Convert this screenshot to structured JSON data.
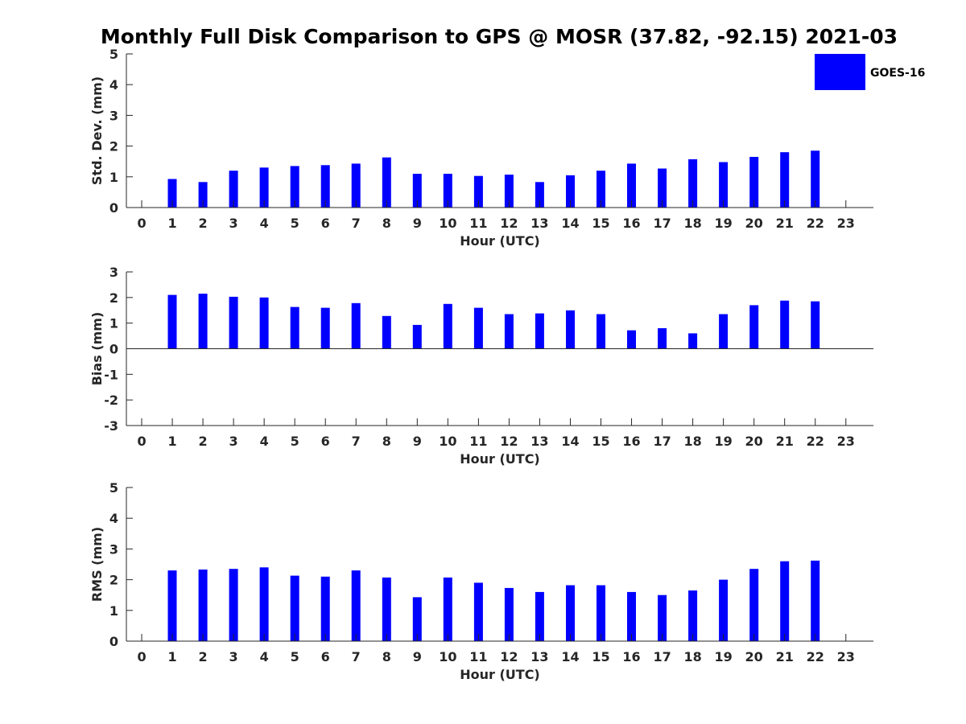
{
  "title": "Monthly Full Disk Comparison to GPS @ MOSR (37.82, -92.15) 2021-03",
  "legend": {
    "label": "GOES-16",
    "color": "#0000ff"
  },
  "chart_data": [
    {
      "type": "bar",
      "ylabel": "Std. Dev. (mm)",
      "xlabel": "Hour (UTC)",
      "ylim": [
        0,
        5
      ],
      "yticks": [
        0,
        1,
        2,
        3,
        4,
        5
      ],
      "xlim": [
        -0.5,
        23.9
      ],
      "xticks": [
        0,
        1,
        2,
        3,
        4,
        5,
        6,
        7,
        8,
        9,
        10,
        11,
        12,
        13,
        14,
        15,
        16,
        17,
        18,
        19,
        20,
        21,
        22,
        23
      ],
      "series": [
        {
          "name": "GOES-16",
          "color": "#0000ff",
          "x": [
            1,
            2,
            3,
            4,
            5,
            6,
            7,
            8,
            9,
            10,
            11,
            12,
            13,
            14,
            15,
            16,
            17,
            18,
            19,
            20,
            21,
            22
          ],
          "values": [
            0.93,
            0.83,
            1.2,
            1.3,
            1.35,
            1.38,
            1.43,
            1.63,
            1.1,
            1.1,
            1.03,
            1.07,
            0.83,
            1.05,
            1.2,
            1.43,
            1.27,
            1.57,
            1.48,
            1.65,
            1.8,
            1.85
          ]
        }
      ]
    },
    {
      "type": "bar",
      "ylabel": "Bias (mm)",
      "xlabel": "Hour (UTC)",
      "ylim": [
        -3,
        3
      ],
      "yticks": [
        -3,
        -2,
        -1,
        0,
        1,
        2,
        3
      ],
      "xlim": [
        -0.5,
        23.9
      ],
      "xticks": [
        0,
        1,
        2,
        3,
        4,
        5,
        6,
        7,
        8,
        9,
        10,
        11,
        12,
        13,
        14,
        15,
        16,
        17,
        18,
        19,
        20,
        21,
        22,
        23
      ],
      "series": [
        {
          "name": "GOES-16",
          "color": "#0000ff",
          "x": [
            1,
            2,
            3,
            4,
            5,
            6,
            7,
            8,
            9,
            10,
            11,
            12,
            13,
            14,
            15,
            16,
            17,
            18,
            19,
            20,
            21,
            22
          ],
          "values": [
            2.1,
            2.15,
            2.03,
            2.0,
            1.63,
            1.6,
            1.78,
            1.28,
            0.93,
            1.75,
            1.6,
            1.35,
            1.38,
            1.5,
            1.35,
            0.72,
            0.8,
            0.6,
            1.35,
            1.7,
            1.88,
            1.85
          ]
        }
      ]
    },
    {
      "type": "bar",
      "ylabel": "RMS (mm)",
      "xlabel": "Hour (UTC)",
      "ylim": [
        0,
        5
      ],
      "yticks": [
        0,
        1,
        2,
        3,
        4,
        5
      ],
      "xlim": [
        -0.5,
        23.9
      ],
      "xticks": [
        0,
        1,
        2,
        3,
        4,
        5,
        6,
        7,
        8,
        9,
        10,
        11,
        12,
        13,
        14,
        15,
        16,
        17,
        18,
        19,
        20,
        21,
        22,
        23
      ],
      "series": [
        {
          "name": "GOES-16",
          "color": "#0000ff",
          "x": [
            1,
            2,
            3,
            4,
            5,
            6,
            7,
            8,
            9,
            10,
            11,
            12,
            13,
            14,
            15,
            16,
            17,
            18,
            19,
            20,
            21,
            22
          ],
          "values": [
            2.3,
            2.33,
            2.35,
            2.4,
            2.13,
            2.1,
            2.3,
            2.07,
            1.43,
            2.07,
            1.9,
            1.73,
            1.6,
            1.82,
            1.82,
            1.6,
            1.5,
            1.65,
            2.0,
            2.35,
            2.6,
            2.62
          ]
        }
      ]
    }
  ]
}
